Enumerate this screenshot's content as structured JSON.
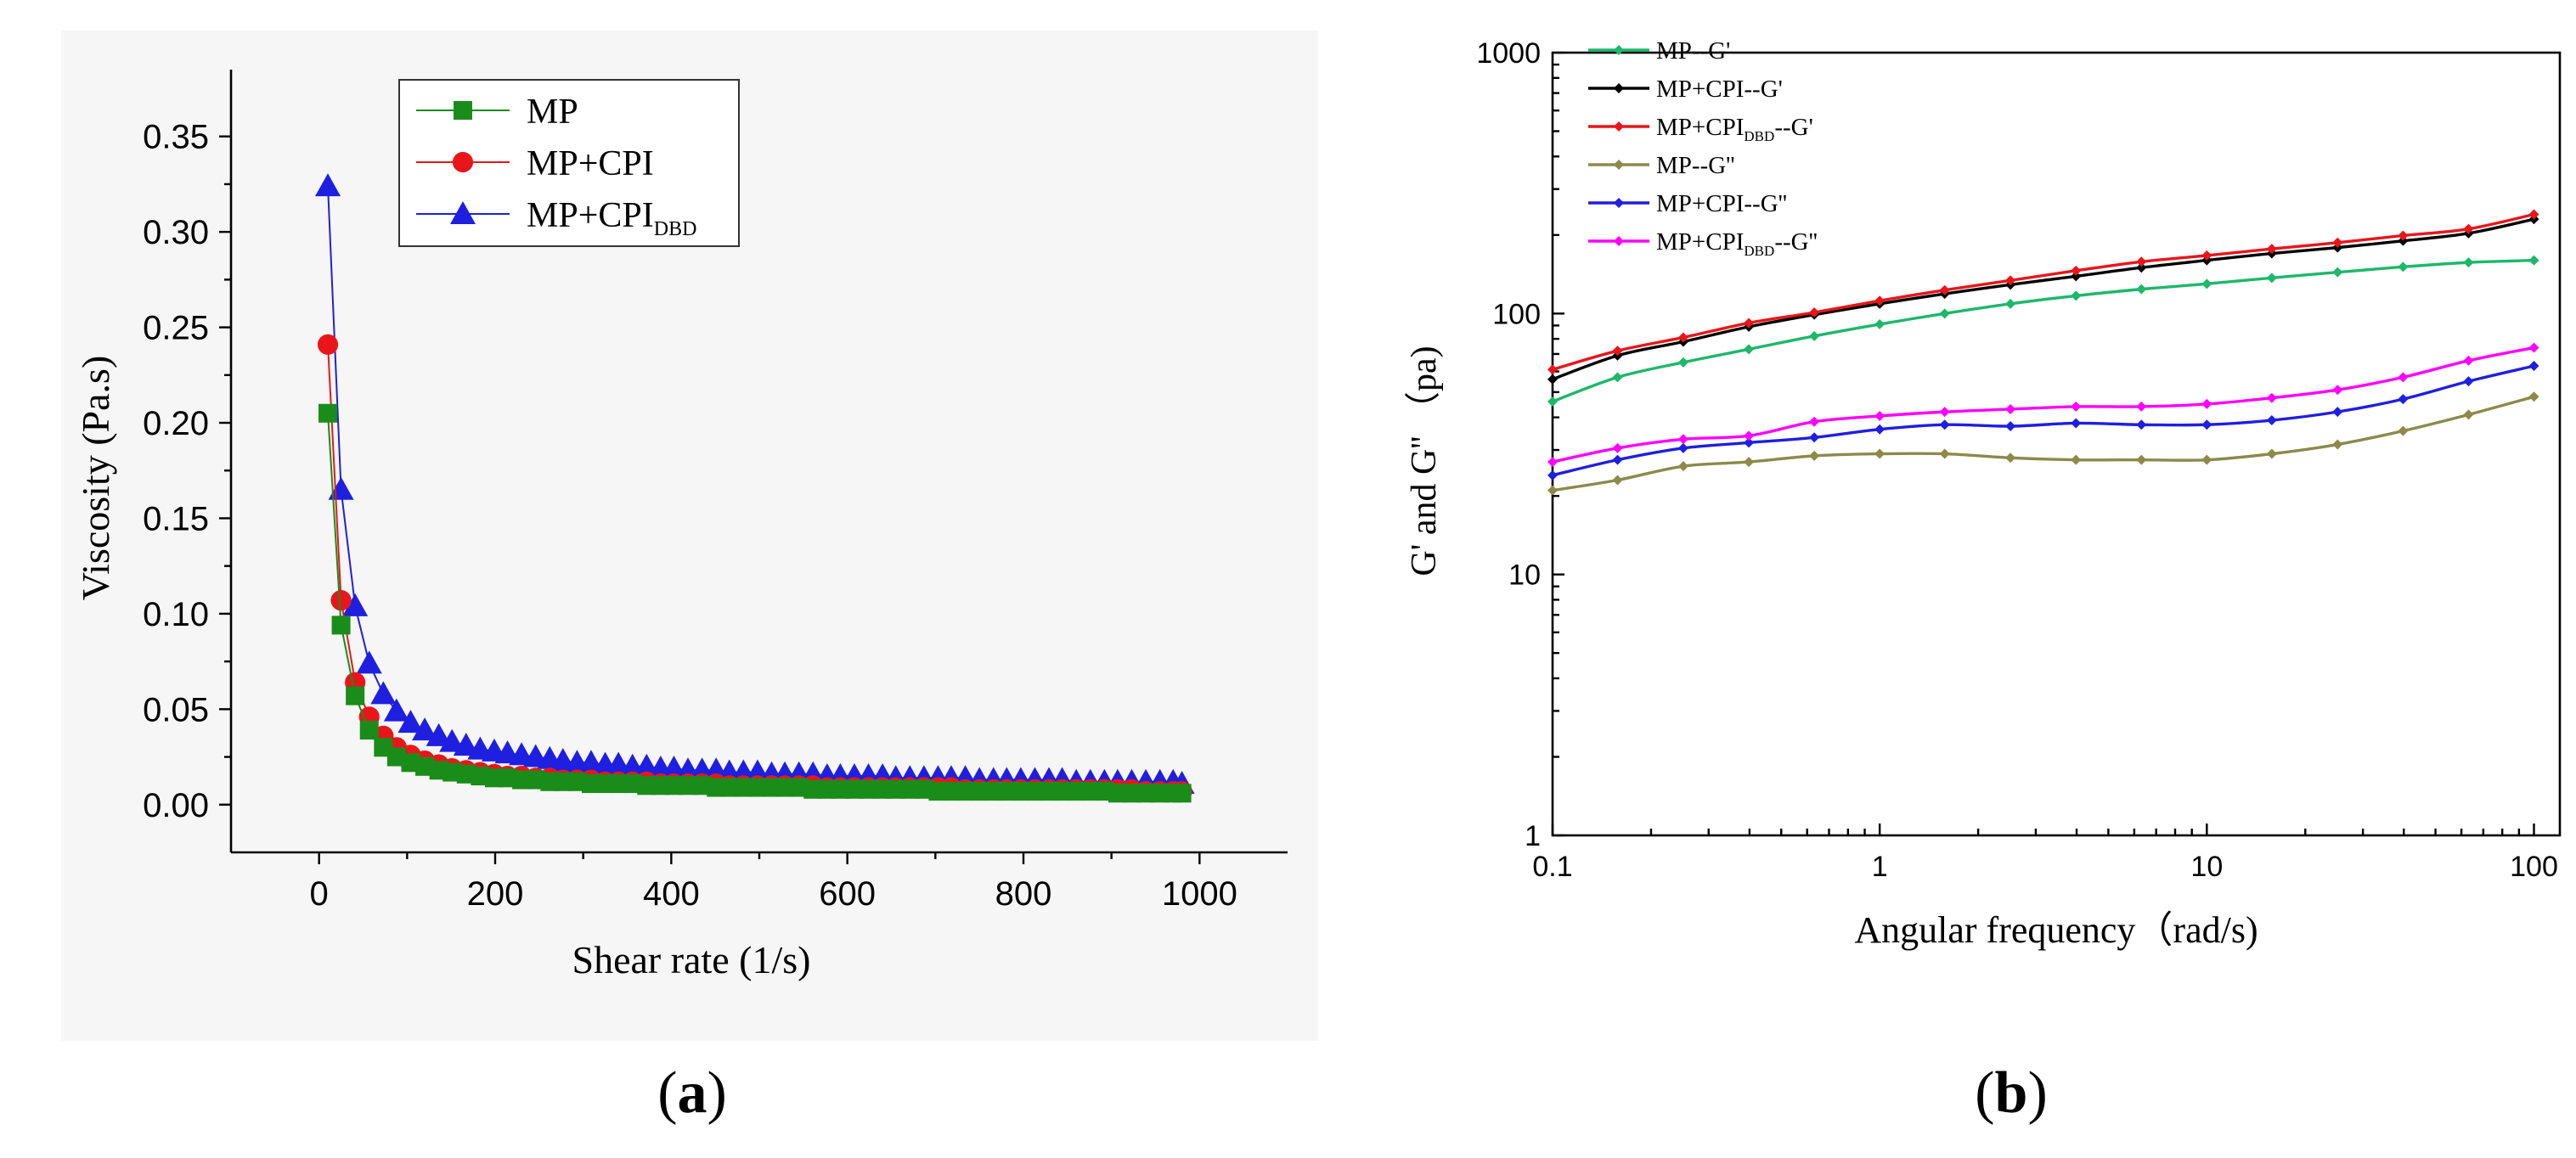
{
  "panel_labels": {
    "a": "a",
    "b": "b"
  },
  "chart_data": [
    {
      "id": "a",
      "type": "line",
      "title": "",
      "xlabel": "Shear rate (1/s)",
      "ylabel": "Viscosity (Pa.s)",
      "xlim": [
        -100,
        1100
      ],
      "ylim": [
        -0.025,
        0.385
      ],
      "xticks": [
        0,
        200,
        400,
        600,
        800,
        1000
      ],
      "xtick_labels": [
        "0",
        "200",
        "400",
        "600",
        "800",
        "1000"
      ],
      "yticks": [
        0.0,
        0.05,
        0.1,
        0.15,
        0.2,
        0.25,
        0.3,
        0.35
      ],
      "ytick_labels": [
        "0.00",
        "0.05",
        "0.10",
        "0.15",
        "0.20",
        "0.25",
        "0.30",
        "0.35"
      ],
      "legend_position": "top-center",
      "x": [
        10,
        25,
        41,
        57,
        73,
        88,
        104,
        120,
        136,
        151,
        167,
        183,
        199,
        214,
        230,
        246,
        262,
        277,
        293,
        309,
        325,
        340,
        356,
        372,
        388,
        403,
        419,
        435,
        451,
        466,
        482,
        498,
        514,
        529,
        545,
        561,
        577,
        592,
        608,
        624,
        640,
        655,
        671,
        687,
        703,
        718,
        734,
        750,
        766,
        781,
        797,
        813,
        829,
        844,
        860,
        876,
        892,
        907,
        923,
        939,
        955,
        970,
        980
      ],
      "series": [
        {
          "name": "MP",
          "legend_main": "MP",
          "legend_sub": "",
          "color": "#1a8c1a",
          "marker": "square",
          "values": [
            0.205,
            0.094,
            0.057,
            0.039,
            0.03,
            0.025,
            0.022,
            0.02,
            0.018,
            0.017,
            0.016,
            0.015,
            0.014,
            0.014,
            0.013,
            0.013,
            0.012,
            0.012,
            0.012,
            0.011,
            0.011,
            0.011,
            0.011,
            0.01,
            0.01,
            0.01,
            0.01,
            0.01,
            0.009,
            0.009,
            0.009,
            0.009,
            0.009,
            0.009,
            0.009,
            0.008,
            0.008,
            0.008,
            0.008,
            0.008,
            0.008,
            0.008,
            0.008,
            0.008,
            0.007,
            0.007,
            0.007,
            0.007,
            0.007,
            0.007,
            0.007,
            0.007,
            0.007,
            0.007,
            0.007,
            0.007,
            0.007,
            0.006,
            0.006,
            0.006,
            0.006,
            0.006,
            0.006
          ]
        },
        {
          "name": "MP+CPI",
          "legend_main": "MP+CPI",
          "legend_sub": "",
          "color": "#e8161b",
          "marker": "circle",
          "values": [
            0.241,
            0.107,
            0.064,
            0.046,
            0.036,
            0.03,
            0.026,
            0.023,
            0.021,
            0.019,
            0.018,
            0.017,
            0.016,
            0.015,
            0.015,
            0.014,
            0.014,
            0.013,
            0.013,
            0.013,
            0.012,
            0.012,
            0.012,
            0.012,
            0.011,
            0.011,
            0.011,
            0.011,
            0.011,
            0.01,
            0.01,
            0.01,
            0.01,
            0.01,
            0.01,
            0.01,
            0.009,
            0.009,
            0.009,
            0.009,
            0.009,
            0.009,
            0.009,
            0.009,
            0.009,
            0.009,
            0.008,
            0.008,
            0.008,
            0.008,
            0.008,
            0.008,
            0.008,
            0.008,
            0.008,
            0.008,
            0.008,
            0.008,
            0.008,
            0.007,
            0.007,
            0.007,
            0.007
          ]
        },
        {
          "name": "MP+CPIDBD",
          "legend_main": "MP+CPI",
          "legend_sub": "DBD",
          "color": "#1f1fe0",
          "marker": "triangle",
          "values": [
            0.324,
            0.165,
            0.104,
            0.074,
            0.058,
            0.049,
            0.043,
            0.039,
            0.036,
            0.033,
            0.031,
            0.029,
            0.028,
            0.027,
            0.026,
            0.025,
            0.024,
            0.023,
            0.022,
            0.022,
            0.021,
            0.021,
            0.02,
            0.02,
            0.019,
            0.019,
            0.018,
            0.018,
            0.018,
            0.017,
            0.017,
            0.017,
            0.016,
            0.016,
            0.016,
            0.016,
            0.015,
            0.015,
            0.015,
            0.015,
            0.015,
            0.014,
            0.014,
            0.014,
            0.014,
            0.014,
            0.014,
            0.013,
            0.013,
            0.013,
            0.013,
            0.013,
            0.013,
            0.013,
            0.012,
            0.012,
            0.012,
            0.012,
            0.012,
            0.012,
            0.012,
            0.012,
            0.011
          ]
        }
      ]
    },
    {
      "id": "b",
      "type": "line",
      "title": "",
      "xscale": "log",
      "yscale": "log",
      "xlabel": "Angular frequency（rad/s)",
      "ylabel": "G' and G''  （pa)",
      "xlim": [
        0.1,
        120
      ],
      "ylim": [
        1,
        1000
      ],
      "xticks": [
        0.1,
        1,
        10,
        100
      ],
      "xtick_labels": [
        "0.1",
        "1",
        "10",
        "100"
      ],
      "yticks": [
        1,
        10,
        100,
        1000
      ],
      "ytick_labels": [
        "1",
        "10",
        "100",
        "1000"
      ],
      "legend_position": "top-left",
      "x": [
        0.1,
        0.158,
        0.251,
        0.398,
        0.631,
        1,
        1.58,
        2.51,
        3.98,
        6.31,
        10,
        15.8,
        25.1,
        39.8,
        63.1,
        100
      ],
      "series": [
        {
          "name": "MP--G'",
          "legend_main": "MP--G'",
          "legend_sub": "",
          "legend_suffix": "",
          "color": "#1db86a",
          "values": [
            46,
            57,
            65,
            73,
            82,
            91,
            100,
            109,
            117,
            124,
            130,
            137,
            144,
            151,
            157,
            160
          ]
        },
        {
          "name": "MP+CPI--G'",
          "legend_main": "MP+CPI--G'",
          "legend_sub": "",
          "legend_suffix": "",
          "color": "#000000",
          "values": [
            56,
            69,
            78,
            89,
            99,
            109,
            119,
            129,
            139,
            150,
            160,
            170,
            179,
            190,
            203,
            230
          ]
        },
        {
          "name": "MP+CPIDBD--G'",
          "legend_main": "MP+CPI",
          "legend_sub": "DBD",
          "legend_suffix": "--G'",
          "color": "#e8161b",
          "values": [
            61,
            72,
            81,
            92,
            101,
            112,
            123,
            134,
            146,
            158,
            167,
            177,
            187,
            199,
            211,
            240
          ]
        },
        {
          "name": "MP--G''",
          "legend_main": "MP--G''",
          "legend_sub": "",
          "legend_suffix": "",
          "color": "#8c8a4a",
          "values": [
            21,
            23,
            26,
            27,
            28.5,
            29,
            29,
            28,
            27.5,
            27.5,
            27.5,
            29,
            31.5,
            35.5,
            41,
            48
          ]
        },
        {
          "name": "MP+CPI--G''",
          "legend_main": "MP+CPI--G''",
          "legend_sub": "",
          "legend_suffix": "",
          "color": "#1f1fe0",
          "values": [
            24,
            27.5,
            30.5,
            32,
            33.5,
            36,
            37.5,
            37,
            38,
            37.5,
            37.5,
            39,
            42,
            47,
            55,
            63
          ]
        },
        {
          "name": "MP+CPIDBD--G''",
          "legend_main": "MP+CPI",
          "legend_sub": "DBD",
          "legend_suffix": "--G''",
          "color": "#ff00ff",
          "values": [
            27,
            30.5,
            33,
            34,
            38.5,
            40.5,
            42,
            43,
            44,
            44,
            45,
            47.5,
            51,
            57,
            66,
            74
          ]
        }
      ]
    }
  ]
}
